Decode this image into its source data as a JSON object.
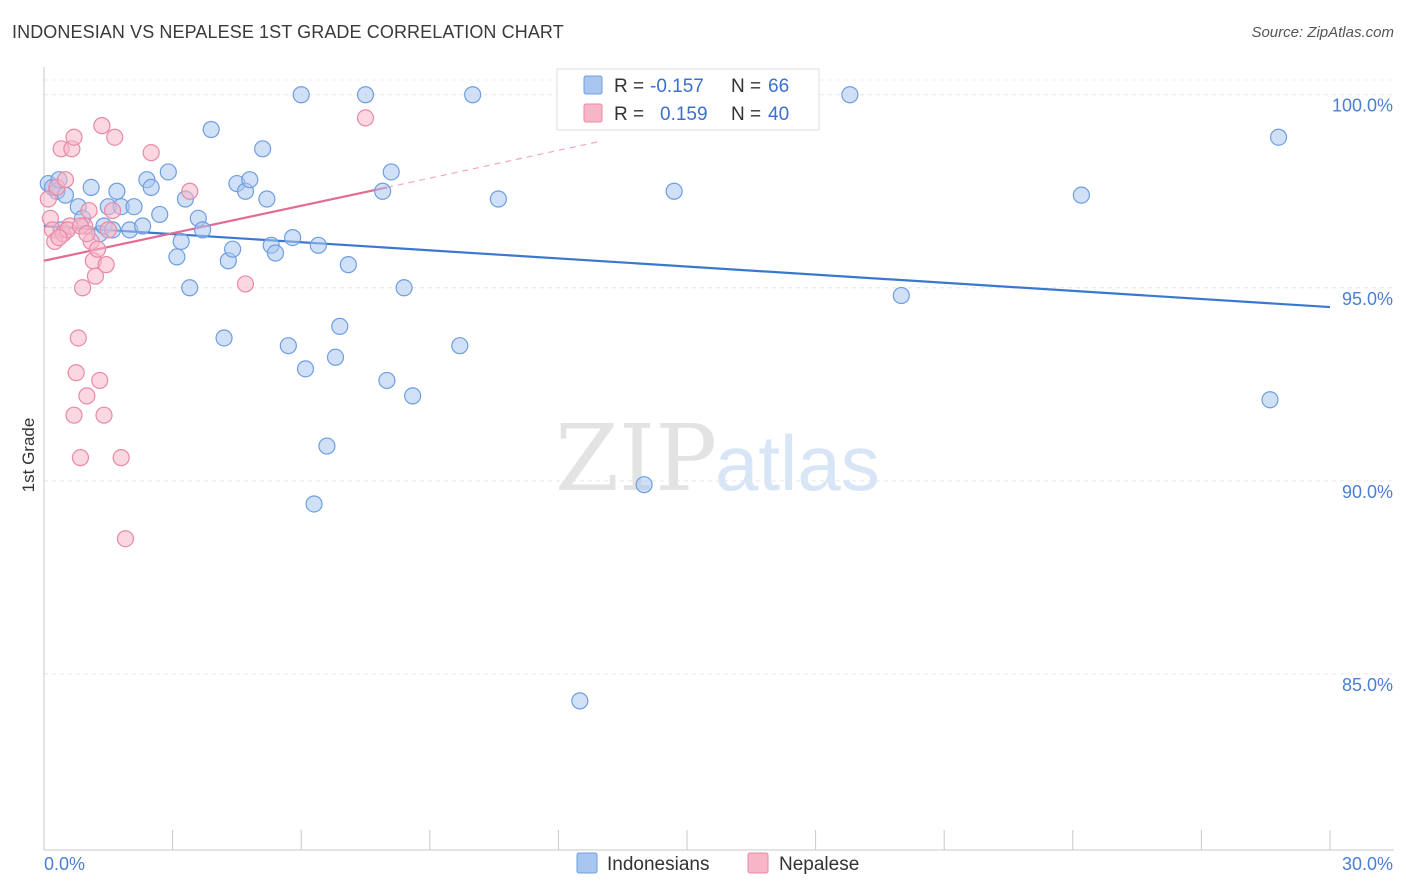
{
  "header": {
    "title": "INDONESIAN VS NEPALESE 1ST GRADE CORRELATION CHART",
    "source": "Source: ZipAtlas.com"
  },
  "watermark": {
    "zip": "ZIP",
    "atlas": "atlas"
  },
  "legend": {
    "rows": [
      {
        "r_label": "R =",
        "r_value": "-0.157",
        "n_label": "N =",
        "n_value": "66",
        "color": "#a9c6f0"
      },
      {
        "r_label": "R =",
        "r_value": "0.159",
        "n_label": "N =",
        "n_value": "40",
        "color": "#f7b6c8"
      }
    ]
  },
  "chart_data": {
    "type": "scatter",
    "title": "INDONESIAN VS NEPALESE 1ST GRADE CORRELATION CHART",
    "xlabel": "",
    "ylabel": "1st Grade",
    "xlim": [
      0,
      30
    ],
    "ylim": [
      80.8,
      100.9
    ],
    "x_tick_labels": [
      {
        "value": 0,
        "label": "0.0%"
      },
      {
        "value": 30,
        "label": "30.0%"
      }
    ],
    "y_tick_labels": [
      {
        "value": 100,
        "label": "100.0%"
      },
      {
        "value": 95,
        "label": "95.0%"
      },
      {
        "value": 90,
        "label": "90.0%"
      },
      {
        "value": 85,
        "label": "85.0%"
      }
    ],
    "series": [
      {
        "name": "Indonesians",
        "color": "#a9c6f0",
        "edge": "#6f9ee0",
        "trend": {
          "x0": 0,
          "y0": 96.6,
          "x1": 30,
          "y1": 94.5,
          "color": "#3a78d0"
        },
        "points": [
          [
            0.1,
            97.7
          ],
          [
            0.2,
            97.6
          ],
          [
            0.3,
            97.5
          ],
          [
            0.35,
            97.8
          ],
          [
            0.5,
            97.4
          ],
          [
            0.8,
            97.1
          ],
          [
            1.1,
            97.6
          ],
          [
            1.3,
            96.4
          ],
          [
            1.4,
            96.6
          ],
          [
            1.5,
            97.1
          ],
          [
            1.7,
            97.5
          ],
          [
            1.8,
            97.1
          ],
          [
            2.0,
            96.5
          ],
          [
            2.1,
            97.1
          ],
          [
            2.3,
            96.6
          ],
          [
            2.4,
            97.8
          ],
          [
            2.5,
            97.6
          ],
          [
            2.7,
            96.9
          ],
          [
            2.9,
            98.0
          ],
          [
            3.1,
            95.8
          ],
          [
            3.2,
            96.2
          ],
          [
            3.3,
            97.3
          ],
          [
            3.6,
            96.8
          ],
          [
            3.7,
            96.5
          ],
          [
            3.9,
            99.1
          ],
          [
            4.2,
            93.7
          ],
          [
            4.3,
            95.7
          ],
          [
            4.4,
            96.0
          ],
          [
            4.5,
            97.7
          ],
          [
            4.7,
            97.5
          ],
          [
            4.8,
            97.8
          ],
          [
            5.1,
            98.6
          ],
          [
            5.2,
            97.3
          ],
          [
            5.3,
            96.1
          ],
          [
            5.4,
            95.9
          ],
          [
            5.7,
            93.5
          ],
          [
            5.8,
            96.3
          ],
          [
            6.0,
            100.0
          ],
          [
            6.1,
            92.9
          ],
          [
            6.3,
            89.4
          ],
          [
            6.4,
            96.1
          ],
          [
            6.6,
            90.9
          ],
          [
            6.8,
            93.2
          ],
          [
            6.9,
            94.0
          ],
          [
            7.1,
            95.6
          ],
          [
            7.5,
            100.0
          ],
          [
            7.9,
            97.5
          ],
          [
            8.0,
            92.6
          ],
          [
            8.1,
            98.0
          ],
          [
            8.4,
            95.0
          ],
          [
            8.6,
            92.2
          ],
          [
            9.7,
            93.5
          ],
          [
            10.0,
            100.0
          ],
          [
            10.6,
            97.3
          ],
          [
            12.5,
            84.3
          ],
          [
            14.0,
            89.9
          ],
          [
            14.7,
            97.5
          ],
          [
            18.8,
            100.0
          ],
          [
            20.0,
            94.8
          ],
          [
            24.2,
            97.4
          ],
          [
            28.6,
            92.1
          ],
          [
            28.8,
            98.9
          ],
          [
            0.4,
            96.5
          ],
          [
            0.9,
            96.8
          ],
          [
            1.6,
            96.5
          ],
          [
            3.4,
            95.0
          ]
        ]
      },
      {
        "name": "Nepalese",
        "color": "#f7b6c8",
        "edge": "#e88aa6",
        "trend": {
          "x0": 0,
          "y0": 95.7,
          "x1": 8.0,
          "y1": 97.6,
          "color": "#e36c96"
        },
        "trend_dashed": {
          "x0": 8.0,
          "y0": 97.6,
          "x1": 13.0,
          "y1": 98.8
        },
        "points": [
          [
            0.1,
            97.3
          ],
          [
            0.15,
            96.8
          ],
          [
            0.2,
            96.5
          ],
          [
            0.25,
            96.2
          ],
          [
            0.3,
            97.6
          ],
          [
            0.4,
            98.6
          ],
          [
            0.45,
            96.4
          ],
          [
            0.5,
            97.8
          ],
          [
            0.6,
            96.6
          ],
          [
            0.65,
            98.6
          ],
          [
            0.7,
            98.9
          ],
          [
            0.75,
            92.8
          ],
          [
            0.8,
            93.7
          ],
          [
            0.85,
            90.6
          ],
          [
            0.9,
            95.0
          ],
          [
            0.95,
            96.6
          ],
          [
            1.0,
            92.2
          ],
          [
            1.05,
            97.0
          ],
          [
            1.1,
            96.2
          ],
          [
            1.15,
            95.7
          ],
          [
            1.2,
            95.3
          ],
          [
            1.25,
            96.0
          ],
          [
            1.3,
            92.6
          ],
          [
            1.35,
            99.2
          ],
          [
            1.4,
            91.7
          ],
          [
            1.45,
            95.6
          ],
          [
            1.5,
            96.5
          ],
          [
            1.6,
            97.0
          ],
          [
            1.65,
            98.9
          ],
          [
            1.8,
            90.6
          ],
          [
            1.9,
            88.5
          ],
          [
            2.5,
            98.5
          ],
          [
            3.4,
            97.5
          ],
          [
            4.7,
            95.1
          ],
          [
            7.5,
            99.4
          ],
          [
            0.55,
            96.5
          ],
          [
            0.35,
            96.3
          ],
          [
            0.85,
            96.6
          ],
          [
            1.0,
            96.4
          ],
          [
            0.7,
            91.7
          ]
        ]
      }
    ]
  },
  "bottom_legend": {
    "items": [
      {
        "label": "Indonesians"
      },
      {
        "label": "Nepalese"
      }
    ]
  }
}
